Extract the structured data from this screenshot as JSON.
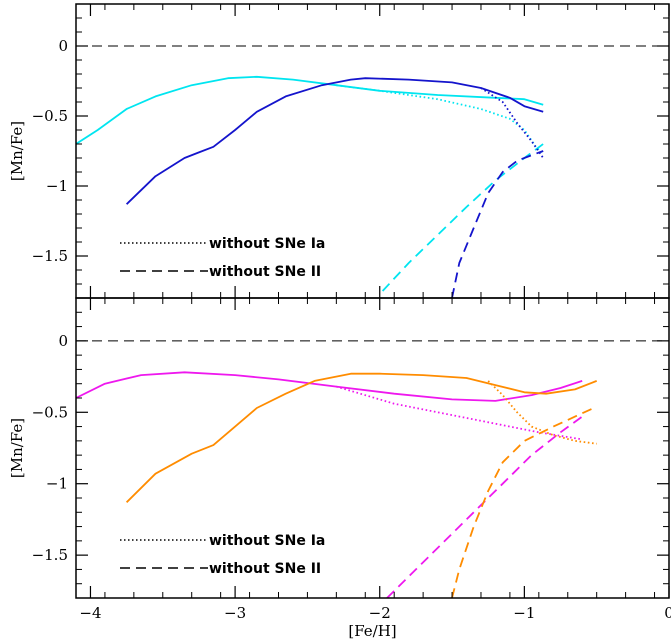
{
  "chart_data": [
    {
      "type": "line",
      "panel": "top",
      "xlabel": "",
      "ylabel": "[Mn/Fe]",
      "xlim": [
        -4.1,
        0
      ],
      "ylim": [
        -1.8,
        0.3
      ],
      "x_ticks": [],
      "y_ticks": [
        "0",
        "−0.5",
        "−1",
        "−1.5"
      ],
      "y_tick_values": [
        0,
        -0.5,
        -1,
        -1.5
      ],
      "grid": false,
      "reference_line": {
        "y": 0,
        "style": "dashed"
      },
      "legend": [
        {
          "label": "without SNe Ia",
          "style": "dotted"
        },
        {
          "label": "without SNe II",
          "style": "dashed"
        }
      ],
      "legend_position": "bottom-left",
      "series": [
        {
          "color": "#00e5f0",
          "style": "solid",
          "points": [
            [
              -4.1,
              -0.7
            ],
            [
              -3.95,
              -0.6
            ],
            [
              -3.75,
              -0.45
            ],
            [
              -3.55,
              -0.36
            ],
            [
              -3.3,
              -0.28
            ],
            [
              -3.05,
              -0.23
            ],
            [
              -2.85,
              -0.22
            ],
            [
              -2.6,
              -0.24
            ],
            [
              -2.3,
              -0.28
            ],
            [
              -2.0,
              -0.32
            ],
            [
              -1.6,
              -0.35
            ],
            [
              -1.2,
              -0.37
            ],
            [
              -1.0,
              -0.38
            ],
            [
              -0.87,
              -0.42
            ]
          ]
        },
        {
          "color": "#00e5f0",
          "style": "dotted",
          "points": [
            [
              -2.3,
              -0.28
            ],
            [
              -2.0,
              -0.32
            ],
            [
              -1.6,
              -0.38
            ],
            [
              -1.3,
              -0.45
            ],
            [
              -1.1,
              -0.52
            ],
            [
              -1.0,
              -0.6
            ],
            [
              -0.92,
              -0.72
            ],
            [
              -0.87,
              -0.77
            ]
          ]
        },
        {
          "color": "#00e5f0",
          "style": "dashed",
          "points": [
            [
              -1.98,
              -1.75
            ],
            [
              -1.8,
              -1.55
            ],
            [
              -1.6,
              -1.35
            ],
            [
              -1.4,
              -1.15
            ],
            [
              -1.2,
              -0.96
            ],
            [
              -1.0,
              -0.8
            ],
            [
              -0.87,
              -0.7
            ]
          ]
        },
        {
          "color": "#1414cc",
          "style": "solid",
          "points": [
            [
              -3.75,
              -1.13
            ],
            [
              -3.55,
              -0.93
            ],
            [
              -3.35,
              -0.8
            ],
            [
              -3.25,
              -0.76
            ],
            [
              -3.15,
              -0.72
            ],
            [
              -3.0,
              -0.6
            ],
            [
              -2.85,
              -0.47
            ],
            [
              -2.65,
              -0.36
            ],
            [
              -2.4,
              -0.28
            ],
            [
              -2.2,
              -0.24
            ],
            [
              -2.1,
              -0.23
            ],
            [
              -1.8,
              -0.24
            ],
            [
              -1.5,
              -0.26
            ],
            [
              -1.3,
              -0.3
            ],
            [
              -1.1,
              -0.37
            ],
            [
              -1.0,
              -0.43
            ],
            [
              -0.87,
              -0.47
            ]
          ]
        },
        {
          "color": "#1414cc",
          "style": "dotted",
          "points": [
            [
              -1.3,
              -0.3
            ],
            [
              -1.15,
              -0.4
            ],
            [
              -1.05,
              -0.55
            ],
            [
              -0.95,
              -0.68
            ],
            [
              -0.87,
              -0.8
            ]
          ]
        },
        {
          "color": "#1414cc",
          "style": "dashed",
          "points": [
            [
              -1.5,
              -1.8
            ],
            [
              -1.45,
              -1.55
            ],
            [
              -1.35,
              -1.3
            ],
            [
              -1.25,
              -1.05
            ],
            [
              -1.15,
              -0.9
            ],
            [
              -1.05,
              -0.82
            ],
            [
              -0.95,
              -0.78
            ],
            [
              -0.87,
              -0.75
            ]
          ]
        }
      ]
    },
    {
      "type": "line",
      "panel": "bottom",
      "xlabel": "[Fe/H]",
      "ylabel": "[Mn/Fe]",
      "xlim": [
        -4.1,
        0
      ],
      "ylim": [
        -1.8,
        0.3
      ],
      "x_ticks": [
        "−4",
        "−3",
        "−2",
        "−1",
        "0"
      ],
      "x_tick_values": [
        -4,
        -3,
        -2,
        -1,
        0
      ],
      "y_ticks": [
        "0",
        "−0.5",
        "−1",
        "−1.5"
      ],
      "y_tick_values": [
        0,
        -0.5,
        -1,
        -1.5
      ],
      "grid": false,
      "reference_line": {
        "y": 0,
        "style": "dashed"
      },
      "legend": [
        {
          "label": "without SNe Ia",
          "style": "dotted"
        },
        {
          "label": "without SNe II",
          "style": "dashed"
        }
      ],
      "legend_position": "bottom-left",
      "series": [
        {
          "color": "#ee18ee",
          "style": "solid",
          "points": [
            [
              -4.1,
              -0.4
            ],
            [
              -3.9,
              -0.3
            ],
            [
              -3.65,
              -0.24
            ],
            [
              -3.35,
              -0.22
            ],
            [
              -3.0,
              -0.24
            ],
            [
              -2.7,
              -0.27
            ],
            [
              -2.3,
              -0.32
            ],
            [
              -1.9,
              -0.37
            ],
            [
              -1.5,
              -0.41
            ],
            [
              -1.2,
              -0.42
            ],
            [
              -0.95,
              -0.38
            ],
            [
              -0.75,
              -0.33
            ],
            [
              -0.6,
              -0.28
            ]
          ]
        },
        {
          "color": "#ee18ee",
          "style": "dotted",
          "points": [
            [
              -2.3,
              -0.32
            ],
            [
              -1.9,
              -0.44
            ],
            [
              -1.5,
              -0.52
            ],
            [
              -1.2,
              -0.58
            ],
            [
              -0.9,
              -0.64
            ],
            [
              -0.6,
              -0.69
            ]
          ]
        },
        {
          "color": "#ee18ee",
          "style": "dashed",
          "points": [
            [
              -1.95,
              -1.8
            ],
            [
              -1.75,
              -1.6
            ],
            [
              -1.55,
              -1.4
            ],
            [
              -1.35,
              -1.2
            ],
            [
              -1.15,
              -1.0
            ],
            [
              -0.95,
              -0.8
            ],
            [
              -0.75,
              -0.64
            ],
            [
              -0.6,
              -0.53
            ]
          ]
        },
        {
          "color": "#ff8c00",
          "style": "solid",
          "points": [
            [
              -3.75,
              -1.13
            ],
            [
              -3.55,
              -0.93
            ],
            [
              -3.3,
              -0.79
            ],
            [
              -3.15,
              -0.73
            ],
            [
              -3.0,
              -0.6
            ],
            [
              -2.85,
              -0.47
            ],
            [
              -2.65,
              -0.37
            ],
            [
              -2.45,
              -0.28
            ],
            [
              -2.2,
              -0.23
            ],
            [
              -2.0,
              -0.23
            ],
            [
              -1.7,
              -0.24
            ],
            [
              -1.4,
              -0.26
            ],
            [
              -1.2,
              -0.31
            ],
            [
              -1.0,
              -0.36
            ],
            [
              -0.85,
              -0.37
            ],
            [
              -0.65,
              -0.34
            ],
            [
              -0.5,
              -0.28
            ]
          ]
        },
        {
          "color": "#ff8c00",
          "style": "dotted",
          "points": [
            [
              -1.25,
              -0.28
            ],
            [
              -1.15,
              -0.38
            ],
            [
              -1.05,
              -0.5
            ],
            [
              -0.95,
              -0.6
            ],
            [
              -0.8,
              -0.66
            ],
            [
              -0.65,
              -0.7
            ],
            [
              -0.5,
              -0.72
            ]
          ]
        },
        {
          "color": "#ff8c00",
          "style": "dashed",
          "points": [
            [
              -1.5,
              -1.8
            ],
            [
              -1.45,
              -1.6
            ],
            [
              -1.35,
              -1.3
            ],
            [
              -1.25,
              -1.05
            ],
            [
              -1.15,
              -0.85
            ],
            [
              -1.0,
              -0.7
            ],
            [
              -0.8,
              -0.6
            ],
            [
              -0.65,
              -0.53
            ],
            [
              -0.5,
              -0.46
            ]
          ]
        }
      ]
    }
  ]
}
